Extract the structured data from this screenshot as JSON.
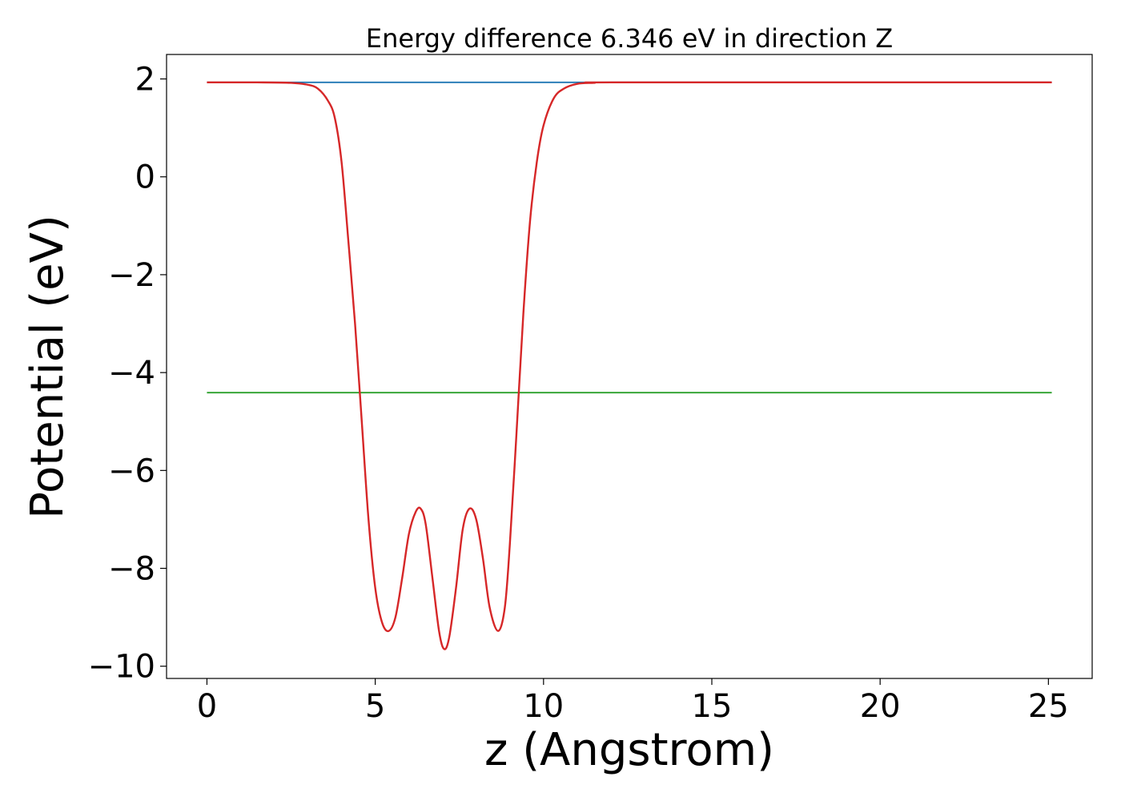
{
  "chart_data": {
    "type": "line",
    "title": "Energy difference 6.346 eV in direction Z",
    "xlabel": "z (Angstrom)",
    "ylabel": "Potential (eV)",
    "xlim": [
      -1.2,
      26.3
    ],
    "ylim": [
      -10.25,
      2.5
    ],
    "x_ticks": [
      0,
      5,
      10,
      15,
      20,
      25
    ],
    "x_tick_labels": [
      "0",
      "5",
      "10",
      "15",
      "20",
      "25"
    ],
    "y_ticks": [
      2,
      0,
      -2,
      -4,
      -6,
      -8,
      -10
    ],
    "y_tick_labels": [
      "2",
      "0",
      "−2",
      "−4",
      "−6",
      "−8",
      "−10"
    ],
    "grid": false,
    "legend": "none",
    "series": [
      {
        "color": "#1f77b4",
        "x": [
          0,
          25.1
        ],
        "y": [
          1.93,
          1.93
        ]
      },
      {
        "color": "#2ca02c",
        "x": [
          0,
          25.1
        ],
        "y": [
          -4.41,
          -4.41
        ]
      },
      {
        "color": "#9467bd",
        "x": [
          12.0,
          25.1
        ],
        "y": [
          1.93,
          1.93
        ]
      },
      {
        "color": "#d62728",
        "x": [
          0,
          1.5,
          2.5,
          3.0,
          3.3,
          3.6,
          3.8,
          4.0,
          4.2,
          4.4,
          4.6,
          4.8,
          5.0,
          5.2,
          5.4,
          5.6,
          5.8,
          6.0,
          6.2,
          6.35,
          6.5,
          6.7,
          6.9,
          7.05,
          7.2,
          7.4,
          7.6,
          7.8,
          8.0,
          8.2,
          8.4,
          8.65,
          8.85,
          9.0,
          9.2,
          9.4,
          9.6,
          9.8,
          10.0,
          10.3,
          10.6,
          11.0,
          11.5,
          12.5,
          25.1
        ],
        "y": [
          1.93,
          1.93,
          1.92,
          1.88,
          1.8,
          1.55,
          1.2,
          0.3,
          -1.3,
          -3.0,
          -5.0,
          -7.0,
          -8.4,
          -9.1,
          -9.28,
          -9.0,
          -8.2,
          -7.3,
          -6.85,
          -6.78,
          -7.1,
          -8.2,
          -9.3,
          -9.65,
          -9.4,
          -8.4,
          -7.2,
          -6.78,
          -7.0,
          -7.8,
          -8.8,
          -9.28,
          -8.8,
          -7.5,
          -5.2,
          -2.8,
          -0.9,
          0.3,
          1.05,
          1.6,
          1.8,
          1.9,
          1.92,
          1.93,
          1.93
        ]
      }
    ]
  }
}
